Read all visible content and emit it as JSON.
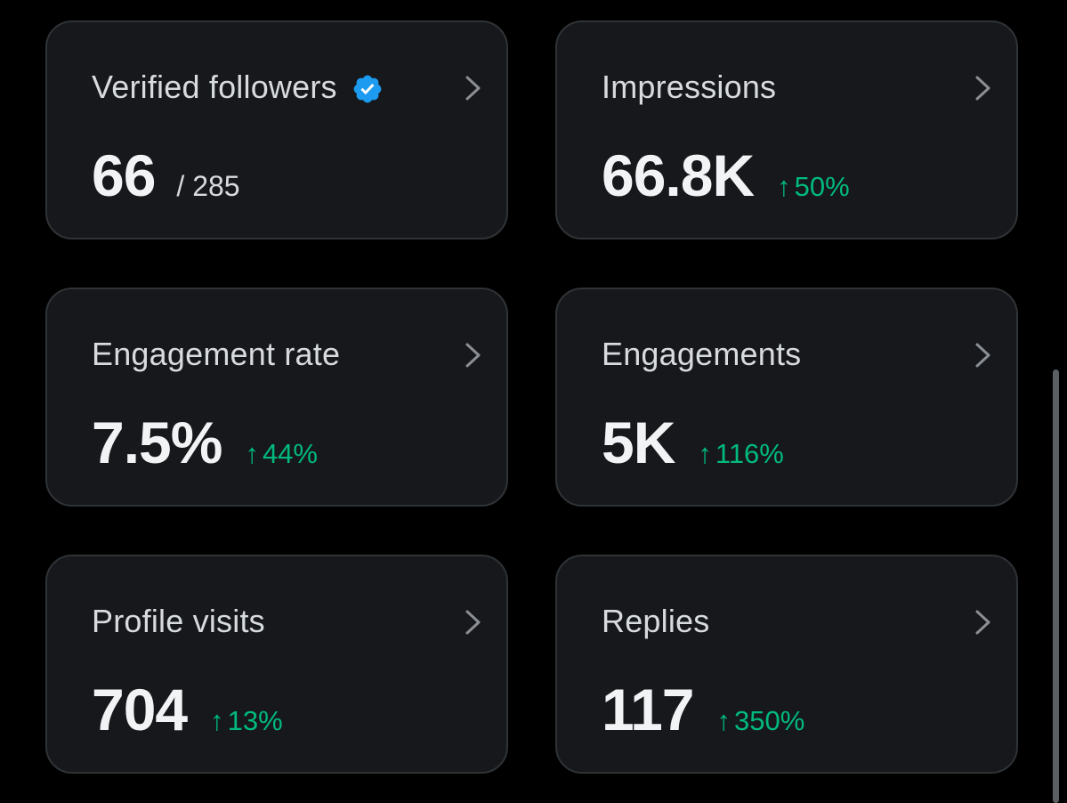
{
  "colors": {
    "background": "#000000",
    "card": "#16181c",
    "card_border": "#2f3336",
    "positive": "#00ba7c",
    "verified": "#1d9bf0"
  },
  "cards": [
    {
      "title": "Verified followers",
      "value": "66",
      "sub": "/ 285",
      "change": "",
      "icon": "verified-badge-icon"
    },
    {
      "title": "Impressions",
      "value": "66.8K",
      "change_arrow": "↑",
      "change": "50%"
    },
    {
      "title": "Engagement rate",
      "value": "7.5%",
      "change_arrow": "↑",
      "change": "44%"
    },
    {
      "title": "Engagements",
      "value": "5K",
      "change_arrow": "↑",
      "change": "116%"
    },
    {
      "title": "Profile visits",
      "value": "704",
      "change_arrow": "↑",
      "change": "13%"
    },
    {
      "title": "Replies",
      "value": "117",
      "change_arrow": "↑",
      "change": "350%"
    }
  ]
}
